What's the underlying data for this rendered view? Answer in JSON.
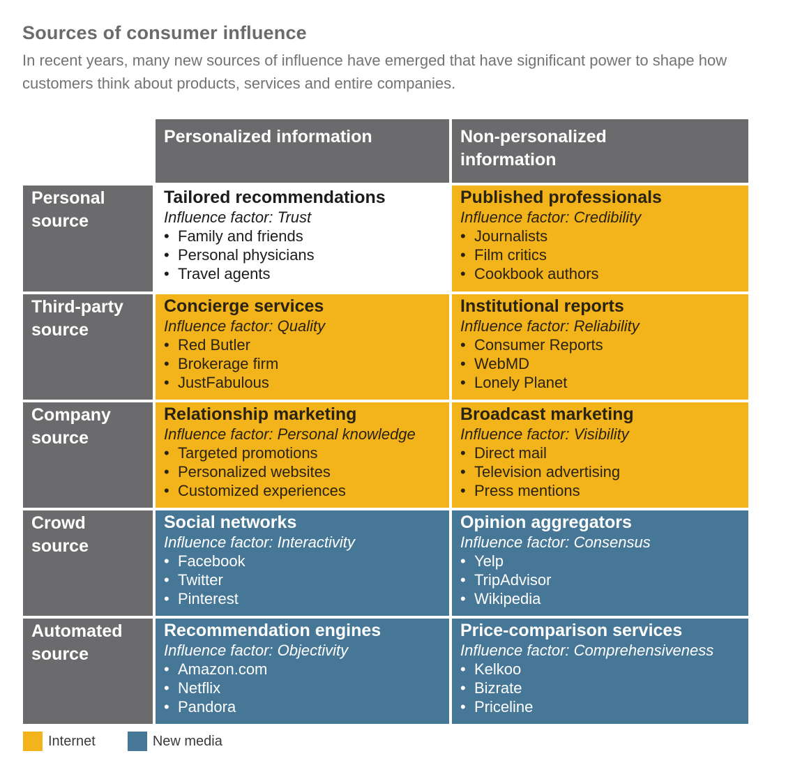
{
  "header": {
    "title": "Sources of consumer influence",
    "subtitle": "In recent years, many new sources of influence have emerged that have significant power to shape how customers think about products, services and entire companies."
  },
  "colors": {
    "header_gray": "#6b6b6e",
    "internet": "#f2b31b",
    "new_media": "#477796",
    "traditional": "#ffffff"
  },
  "matrix": {
    "columns": [
      "Personalized information",
      "Non-personalized information"
    ],
    "rows": [
      {
        "label": "Personal source",
        "cells": [
          {
            "category": "traditional",
            "title": "Tailored recommendations",
            "factor": "Influence factor: Trust",
            "items": [
              "Family and friends",
              "Personal physicians",
              "Travel agents"
            ]
          },
          {
            "category": "internet",
            "title": "Published professionals",
            "factor": "Influence factor: Credibility",
            "items": [
              "Journalists",
              "Film critics",
              "Cookbook authors"
            ]
          }
        ]
      },
      {
        "label": "Third-party source",
        "cells": [
          {
            "category": "internet",
            "title": "Concierge services",
            "factor": "Influence factor: Quality",
            "items": [
              "Red Butler",
              "Brokerage firm",
              "JustFabulous"
            ]
          },
          {
            "category": "internet",
            "title": "Institutional reports",
            "factor": "Influence factor: Reliability",
            "items": [
              "Consumer Reports",
              "WebMD",
              "Lonely Planet"
            ]
          }
        ]
      },
      {
        "label": "Company source",
        "cells": [
          {
            "category": "internet",
            "title": "Relationship marketing",
            "factor": "Influence factor: Personal knowledge",
            "items": [
              "Targeted promotions",
              "Personalized websites",
              "Customized experiences"
            ]
          },
          {
            "category": "internet",
            "title": "Broadcast marketing",
            "factor": "Influence factor: Visibility",
            "items": [
              "Direct mail",
              "Television advertising",
              "Press mentions"
            ]
          }
        ]
      },
      {
        "label": "Crowd source",
        "cells": [
          {
            "category": "newmedia",
            "title": "Social networks",
            "factor": "Influence factor: Interactivity",
            "items": [
              "Facebook",
              "Twitter",
              "Pinterest"
            ]
          },
          {
            "category": "newmedia",
            "title": "Opinion aggregators",
            "factor": "Influence factor: Consensus",
            "items": [
              "Yelp",
              "TripAdvisor",
              "Wikipedia"
            ]
          }
        ]
      },
      {
        "label": "Automated source",
        "cells": [
          {
            "category": "newmedia",
            "title": "Recommendation engines",
            "factor": "Influence factor: Objectivity",
            "items": [
              "Amazon.com",
              "Netflix",
              "Pandora"
            ]
          },
          {
            "category": "newmedia",
            "title": "Price-comparison services",
            "factor": "Influence factor: Comprehensiveness",
            "items": [
              "Kelkoo",
              "Bizrate",
              "Priceline"
            ]
          }
        ]
      }
    ]
  },
  "legend": [
    {
      "label": "Internet",
      "category": "internet"
    },
    {
      "label": "New media",
      "category": "newmedia"
    }
  ],
  "bullet_glyph": "•"
}
